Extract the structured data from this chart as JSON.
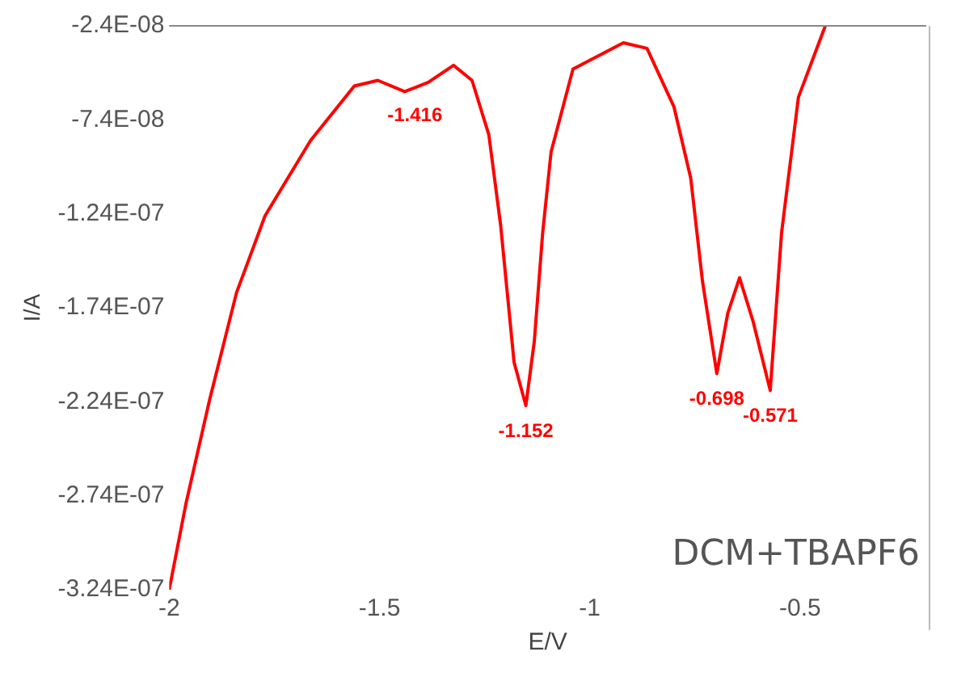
{
  "chart_data": {
    "type": "line",
    "xlabel": "E/V",
    "ylabel": "I/A",
    "x": [
      -2,
      -1.96,
      -1.904,
      -1.84,
      -1.772,
      -1.664,
      -1.56,
      -1.504,
      -1.44,
      -1.384,
      -1.324,
      -1.28,
      -1.24,
      -1.212,
      -1.18,
      -1.152,
      -1.132,
      -1.112,
      -1.092,
      -1.04,
      -0.92,
      -0.864,
      -0.8,
      -0.76,
      -0.732,
      -0.698,
      -0.672,
      -0.644,
      -0.612,
      -0.571,
      -0.544,
      -0.504,
      -0.44
    ],
    "series": [
      {
        "color": "#ff0000",
        "values": [
          -3.24e-07,
          -2.78e-07,
          -2.23e-07,
          -1.66e-07,
          -1.25e-07,
          -8.5e-08,
          -5.6e-08,
          -5.3e-08,
          -5.9e-08,
          -5.4e-08,
          -4.5e-08,
          -5.3e-08,
          -8.2e-08,
          -1.3e-07,
          -2.03e-07,
          -2.26e-07,
          -1.92e-07,
          -1.34e-07,
          -9.1e-08,
          -4.7e-08,
          -3.3e-08,
          -3.6e-08,
          -6.7e-08,
          -1.05e-07,
          -1.6e-07,
          -2.09e-07,
          -1.77e-07,
          -1.58e-07,
          -1.81e-07,
          -2.18e-07,
          -1.34e-07,
          -6.2e-08,
          -2.4e-08
        ]
      }
    ],
    "xlim": [
      -2,
      -0.2
    ],
    "xticks": [
      -2,
      -1.5,
      -1,
      -0.5
    ],
    "ylim": [
      -3.24e-07,
      -2.4e-08
    ],
    "yticks": [
      {
        "value": -3.24e-07,
        "label": "-3.24E-07"
      },
      {
        "value": -2.74e-07,
        "label": "-2.74E-07"
      },
      {
        "value": -2.24e-07,
        "label": "-2.24E-07"
      },
      {
        "value": -1.74e-07,
        "label": "-1.74E-07"
      },
      {
        "value": -1.24e-07,
        "label": "-1.24E-07"
      },
      {
        "value": -7.4e-08,
        "label": "-7.4E-08"
      },
      {
        "value": -2.4e-08,
        "label": "-2.4E-08"
      }
    ],
    "annotations": [
      {
        "text": "-1.416",
        "x": -1.416,
        "y": -5.8e-08
      },
      {
        "text": "-1.152",
        "x": -1.152,
        "y": -2.26e-07
      },
      {
        "text": "-0.698",
        "x": -0.698,
        "y": -2.09e-07
      },
      {
        "text": "-0.571",
        "x": -0.571,
        "y": -2.18e-07
      },
      "DCM+TBAPF6"
    ],
    "grid": false,
    "marker": "none",
    "line_style": "solid",
    "legend": false
  }
}
